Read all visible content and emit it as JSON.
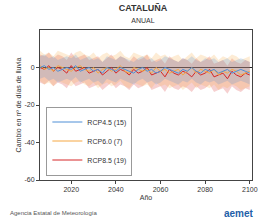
{
  "chart_data": {
    "type": "line",
    "title": "CATALUÑA",
    "subtitle": "ANUAL",
    "x_label": "Año",
    "y_label": "Cambio en nº de días de lluvia",
    "annotations": [
      "Agencia Estatal de Meteorología",
      "aemet"
    ],
    "x": [
      2006,
      2008,
      2010,
      2012,
      2014,
      2016,
      2018,
      2020,
      2022,
      2024,
      2026,
      2028,
      2030,
      2032,
      2034,
      2036,
      2038,
      2040,
      2042,
      2044,
      2046,
      2048,
      2050,
      2052,
      2054,
      2056,
      2058,
      2060,
      2062,
      2064,
      2066,
      2068,
      2070,
      2072,
      2074,
      2076,
      2078,
      2080,
      2082,
      2084,
      2086,
      2088,
      2090,
      2092,
      2094,
      2096,
      2098,
      2100
    ],
    "xlim": [
      2006,
      2101
    ],
    "xticks": [
      2020,
      2040,
      2060,
      2080,
      2100
    ],
    "ylim": [
      -60,
      20
    ],
    "yticks": [
      -60,
      -40,
      -20,
      0
    ],
    "grid": false,
    "legend": "lower left",
    "series": [
      {
        "name": "RCP8.5 (19)",
        "color": "#d62728",
        "values": [
          0,
          -1,
          1,
          -2,
          0,
          -1,
          -3,
          1,
          -2,
          -1,
          0,
          -3,
          -2,
          -1,
          -4,
          -2,
          0,
          -3,
          -1,
          -2,
          -4,
          -1,
          -3,
          -2,
          0,
          -4,
          -3,
          -2,
          -5,
          -1,
          -3,
          -4,
          -2,
          -3,
          -5,
          -2,
          -4,
          -3,
          -1,
          -5,
          -4,
          -3,
          -6,
          -2,
          -4,
          -5,
          -3,
          -4
        ],
        "lower": [
          -8,
          -9,
          -7,
          -10,
          -8,
          -9,
          -11,
          -7,
          -10,
          -9,
          -8,
          -11,
          -10,
          -9,
          -12,
          -10,
          -8,
          -11,
          -9,
          -10,
          -12,
          -9,
          -11,
          -10,
          -8,
          -12,
          -11,
          -10,
          -13,
          -9,
          -11,
          -12,
          -10,
          -11,
          -13,
          -10,
          -12,
          -11,
          -9,
          -13,
          -12,
          -11,
          -14,
          -10,
          -12,
          -13,
          -11,
          -12
        ],
        "upper": [
          7,
          6,
          8,
          5,
          7,
          6,
          4,
          8,
          5,
          6,
          7,
          4,
          5,
          6,
          3,
          5,
          7,
          4,
          6,
          5,
          3,
          6,
          4,
          5,
          7,
          3,
          4,
          5,
          2,
          6,
          4,
          3,
          5,
          4,
          2,
          5,
          3,
          4,
          6,
          2,
          3,
          4,
          1,
          5,
          3,
          2,
          4,
          3
        ]
      },
      {
        "name": "RCP6.0 (7)",
        "color": "#f5a742",
        "values": [
          1,
          -1,
          0,
          -2,
          1,
          0,
          -1,
          -2,
          0,
          1,
          -1,
          -2,
          0,
          -3,
          -1,
          0,
          -2,
          -1,
          1,
          -2,
          -3,
          0,
          -1,
          -2,
          -1,
          -3,
          0,
          -2,
          -1,
          -3,
          -2,
          -1,
          -4,
          -2,
          0,
          -3,
          -1,
          -2,
          -3,
          -1,
          -4,
          -2,
          -3,
          -1,
          -2,
          -4,
          -3,
          -2
        ],
        "lower": [
          -7,
          -9,
          -8,
          -10,
          -7,
          -8,
          -9,
          -10,
          -8,
          -7,
          -9,
          -10,
          -8,
          -11,
          -9,
          -8,
          -10,
          -9,
          -7,
          -10,
          -11,
          -8,
          -9,
          -10,
          -9,
          -11,
          -8,
          -10,
          -9,
          -11,
          -10,
          -9,
          -12,
          -10,
          -8,
          -11,
          -9,
          -10,
          -11,
          -9,
          -12,
          -10,
          -11,
          -9,
          -10,
          -12,
          -11,
          -10
        ],
        "upper": [
          9,
          7,
          8,
          6,
          9,
          8,
          7,
          6,
          8,
          9,
          7,
          6,
          8,
          5,
          7,
          8,
          6,
          7,
          9,
          6,
          5,
          8,
          7,
          6,
          7,
          5,
          8,
          6,
          7,
          5,
          6,
          7,
          4,
          6,
          8,
          5,
          7,
          6,
          5,
          7,
          4,
          6,
          5,
          7,
          6,
          4,
          5,
          6
        ]
      },
      {
        "name": "RCP4.5 (15)",
        "color": "#4f8fd6",
        "values": [
          0,
          1,
          -1,
          0,
          -2,
          -1,
          0,
          -1,
          1,
          -2,
          -1,
          0,
          -2,
          -1,
          -3,
          0,
          -1,
          -2,
          0,
          -1,
          -2,
          -3,
          -1,
          0,
          -2,
          -1,
          -3,
          -2,
          0,
          -1,
          -2,
          -3,
          -1,
          -2,
          0,
          -2,
          -3,
          -1,
          -2,
          -1,
          -3,
          -2,
          -1,
          -3,
          -2,
          -1,
          -2,
          -3
        ],
        "lower": [
          -6,
          -5,
          -7,
          -6,
          -8,
          -7,
          -6,
          -7,
          -5,
          -8,
          -7,
          -6,
          -8,
          -7,
          -9,
          -6,
          -7,
          -8,
          -6,
          -7,
          -8,
          -9,
          -7,
          -6,
          -8,
          -7,
          -9,
          -8,
          -6,
          -7,
          -8,
          -9,
          -7,
          -8,
          -6,
          -8,
          -9,
          -7,
          -8,
          -7,
          -9,
          -8,
          -7,
          -9,
          -8,
          -7,
          -8,
          -9
        ],
        "upper": [
          6,
          7,
          5,
          6,
          4,
          5,
          6,
          5,
          7,
          4,
          5,
          6,
          4,
          5,
          3,
          6,
          5,
          4,
          6,
          5,
          4,
          3,
          5,
          6,
          4,
          5,
          3,
          4,
          6,
          5,
          4,
          3,
          5,
          4,
          6,
          4,
          3,
          5,
          4,
          5,
          3,
          4,
          5,
          3,
          4,
          5,
          4,
          3
        ]
      }
    ]
  }
}
